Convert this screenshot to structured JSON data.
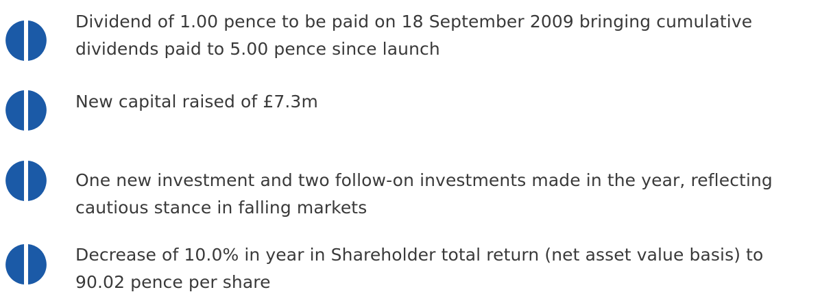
{
  "items": [
    {
      "lines": [
        "Dividend of 1.00 pence to be paid on 18 September 2009 bringing cumulative",
        "dividends paid to 5.00 pence since launch"
      ]
    },
    {
      "lines": [
        "New capital raised of £7.3m"
      ]
    },
    {
      "lines": [
        "One new investment and two follow-on investments made in the year, reflecting",
        "cautious stance in falling markets"
      ]
    },
    {
      "lines": [
        "Decrease of 10.0% in year in Shareholder total return (net asset value basis) to",
        "90.02 pence per share"
      ]
    }
  ]
}
